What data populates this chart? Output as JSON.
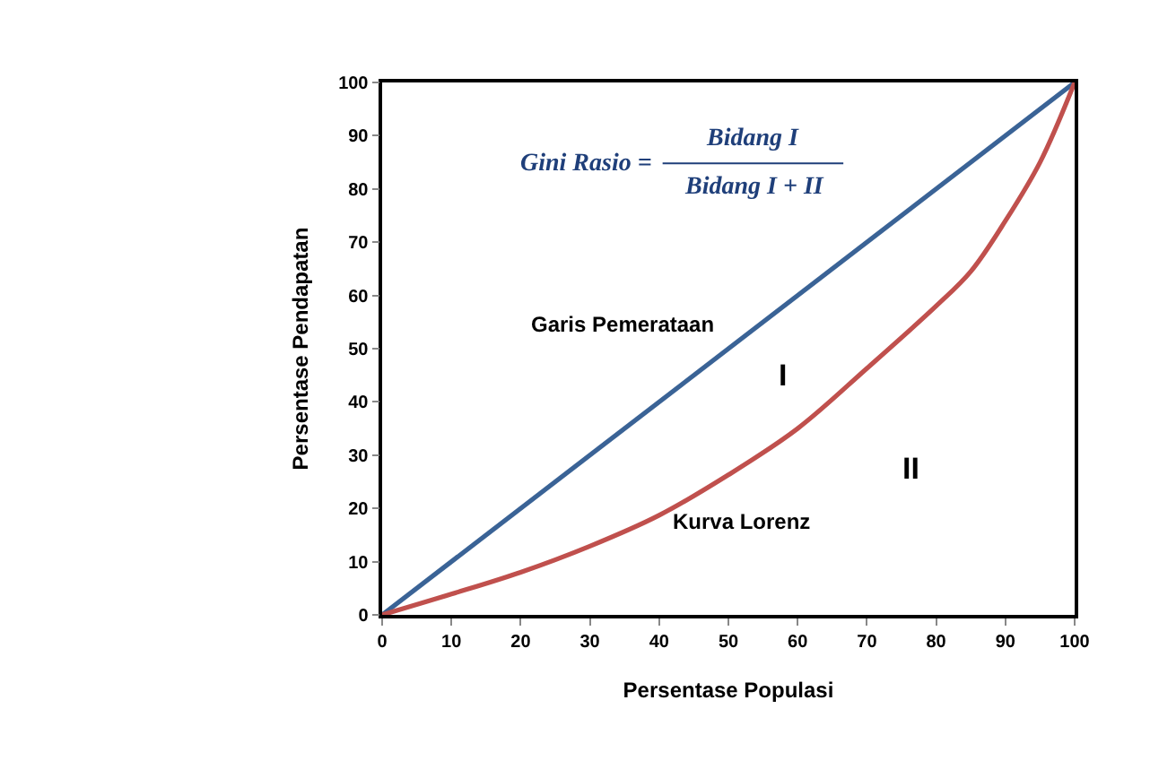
{
  "chart_data": {
    "type": "line",
    "xlabel": "Persentase Populasi",
    "ylabel": "Persentase Pendapatan",
    "x": [
      0,
      10,
      20,
      30,
      40,
      50,
      60,
      70,
      80,
      85,
      90,
      95,
      100
    ],
    "series": [
      {
        "color": "#3a6396",
        "x": [
          0,
          100
        ],
        "values": [
          0,
          100
        ]
      },
      {
        "color": "#c0504d",
        "values": [
          0,
          3.9,
          8,
          12.9,
          18.7,
          26.3,
          35,
          46.3,
          58,
          64.5,
          74,
          85,
          100
        ]
      }
    ],
    "xlim": [
      0,
      100
    ],
    "xticks": [
      0,
      10,
      20,
      30,
      40,
      50,
      60,
      70,
      80,
      90,
      100
    ],
    "ylim": [
      0,
      100
    ],
    "yticks": [
      0,
      10,
      20,
      30,
      40,
      50,
      60,
      70,
      80,
      90,
      100
    ],
    "marker": "none",
    "line_style": "solid",
    "annotations": [
      "Gini Rasio =",
      "Bidang I",
      "Bidang I + II",
      "Garis Pemerataan",
      "I",
      "II",
      "Kurva Lorenz"
    ]
  }
}
